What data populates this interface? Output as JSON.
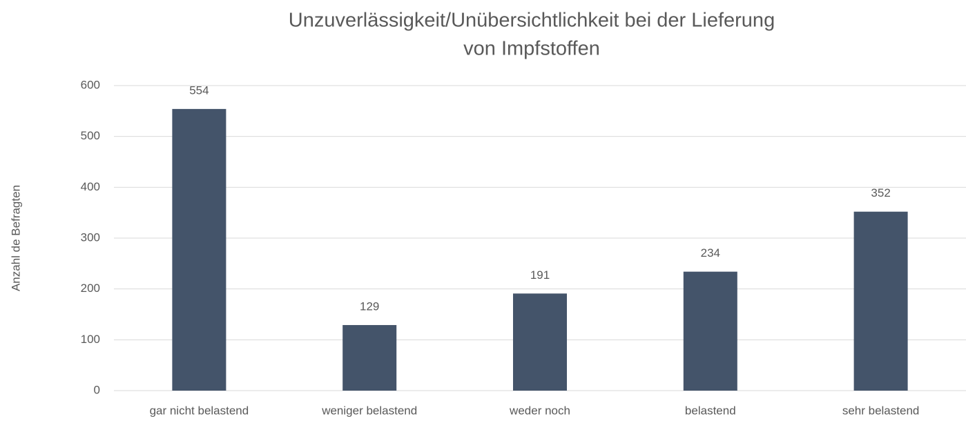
{
  "chart_data": {
    "type": "bar",
    "title": [
      "Unzuverlässigkeit/Unübersichtlichkeit bei der Lieferung",
      "von Impfstoffen"
    ],
    "y_label": "Anzahl de Befragten",
    "categories": [
      "gar nicht belastend",
      "weniger belastend",
      "weder noch",
      "belastend",
      "sehr belastend"
    ],
    "values": [
      554,
      129,
      191,
      234,
      352
    ],
    "color": "#44546a",
    "ylim": [
      0,
      600
    ],
    "yticks": [
      0,
      100,
      200,
      300,
      400,
      500,
      600
    ],
    "grid": true,
    "data_labels": true
  }
}
